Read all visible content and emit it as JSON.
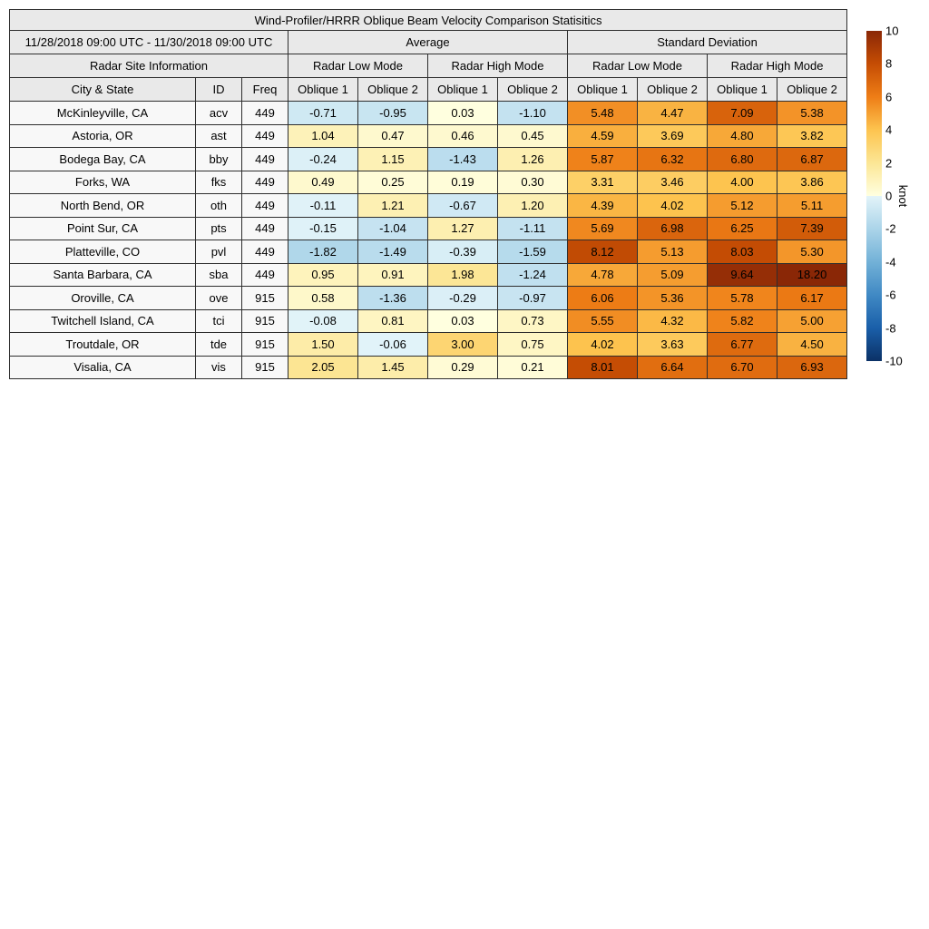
{
  "chart_data": {
    "type": "table",
    "title": "Wind-Profiler/HRRR Oblique Beam Velocity Comparison Statisitics",
    "date_range": "11/28/2018 09:00 UTC - 11/30/2018 09:00 UTC",
    "groups": {
      "site_info": "Radar Site Information",
      "average": "Average",
      "std_dev": "Standard Deviation"
    },
    "mode_headers": [
      "Radar Low Mode",
      "Radar High Mode",
      "Radar Low Mode",
      "Radar High Mode"
    ],
    "columns": [
      "City & State",
      "ID",
      "Freq",
      "Oblique 1",
      "Oblique 2",
      "Oblique 1",
      "Oblique 2",
      "Oblique 1",
      "Oblique 2",
      "Oblique 1",
      "Oblique 2"
    ],
    "rows": [
      {
        "city": "McKinleyville, CA",
        "id": "acv",
        "freq": "449",
        "values": [
          -0.71,
          -0.95,
          0.03,
          -1.1,
          5.48,
          4.47,
          7.09,
          5.38
        ]
      },
      {
        "city": "Astoria, OR",
        "id": "ast",
        "freq": "449",
        "values": [
          1.04,
          0.47,
          0.46,
          0.45,
          4.59,
          3.69,
          4.8,
          3.82
        ]
      },
      {
        "city": "Bodega Bay, CA",
        "id": "bby",
        "freq": "449",
        "values": [
          -0.24,
          1.15,
          -1.43,
          1.26,
          5.87,
          6.32,
          6.8,
          6.87
        ]
      },
      {
        "city": "Forks, WA",
        "id": "fks",
        "freq": "449",
        "values": [
          0.49,
          0.25,
          0.19,
          0.3,
          3.31,
          3.46,
          4.0,
          3.86
        ]
      },
      {
        "city": "North Bend, OR",
        "id": "oth",
        "freq": "449",
        "values": [
          -0.11,
          1.21,
          -0.67,
          1.2,
          4.39,
          4.02,
          5.12,
          5.11
        ]
      },
      {
        "city": "Point Sur, CA",
        "id": "pts",
        "freq": "449",
        "values": [
          -0.15,
          -1.04,
          1.27,
          -1.11,
          5.69,
          6.98,
          6.25,
          7.39
        ]
      },
      {
        "city": "Platteville, CO",
        "id": "pvl",
        "freq": "449",
        "values": [
          -1.82,
          -1.49,
          -0.39,
          -1.59,
          8.12,
          5.13,
          8.03,
          5.3
        ]
      },
      {
        "city": "Santa Barbara, CA",
        "id": "sba",
        "freq": "449",
        "values": [
          0.95,
          0.91,
          1.98,
          -1.24,
          4.78,
          5.09,
          9.64,
          18.2
        ]
      },
      {
        "city": "Oroville, CA",
        "id": "ove",
        "freq": "915",
        "values": [
          0.58,
          -1.36,
          -0.29,
          -0.97,
          6.06,
          5.36,
          5.78,
          6.17
        ]
      },
      {
        "city": "Twitchell Island, CA",
        "id": "tci",
        "freq": "915",
        "values": [
          -0.08,
          0.81,
          0.03,
          0.73,
          5.55,
          4.32,
          5.82,
          5.0
        ]
      },
      {
        "city": "Troutdale, OR",
        "id": "tde",
        "freq": "915",
        "values": [
          1.5,
          -0.06,
          3.0,
          0.75,
          4.02,
          3.63,
          6.77,
          4.5
        ]
      },
      {
        "city": "Visalia, CA",
        "id": "vis",
        "freq": "915",
        "values": [
          2.05,
          1.45,
          0.29,
          0.21,
          8.01,
          6.64,
          6.7,
          6.93
        ]
      }
    ],
    "colorbar": {
      "min": -10,
      "max": 10,
      "ticks": [
        10,
        8,
        6,
        4,
        2,
        0,
        -2,
        -4,
        -6,
        -8,
        -10
      ],
      "unit": "knot"
    },
    "colormap": {
      "positive_stops": [
        [
          0,
          "#ffffe0"
        ],
        [
          2,
          "#fce695"
        ],
        [
          4,
          "#fdc44f"
        ],
        [
          6,
          "#ee7d16"
        ],
        [
          8,
          "#c54d04"
        ],
        [
          10,
          "#8a2706"
        ]
      ],
      "negative_stops": [
        [
          0,
          "#e3f4f9"
        ],
        [
          2,
          "#abd4e9"
        ],
        [
          4,
          "#72b1d7"
        ],
        [
          6,
          "#4089c4"
        ],
        [
          8,
          "#1a5fa9"
        ],
        [
          10,
          "#0b3166"
        ]
      ]
    }
  }
}
